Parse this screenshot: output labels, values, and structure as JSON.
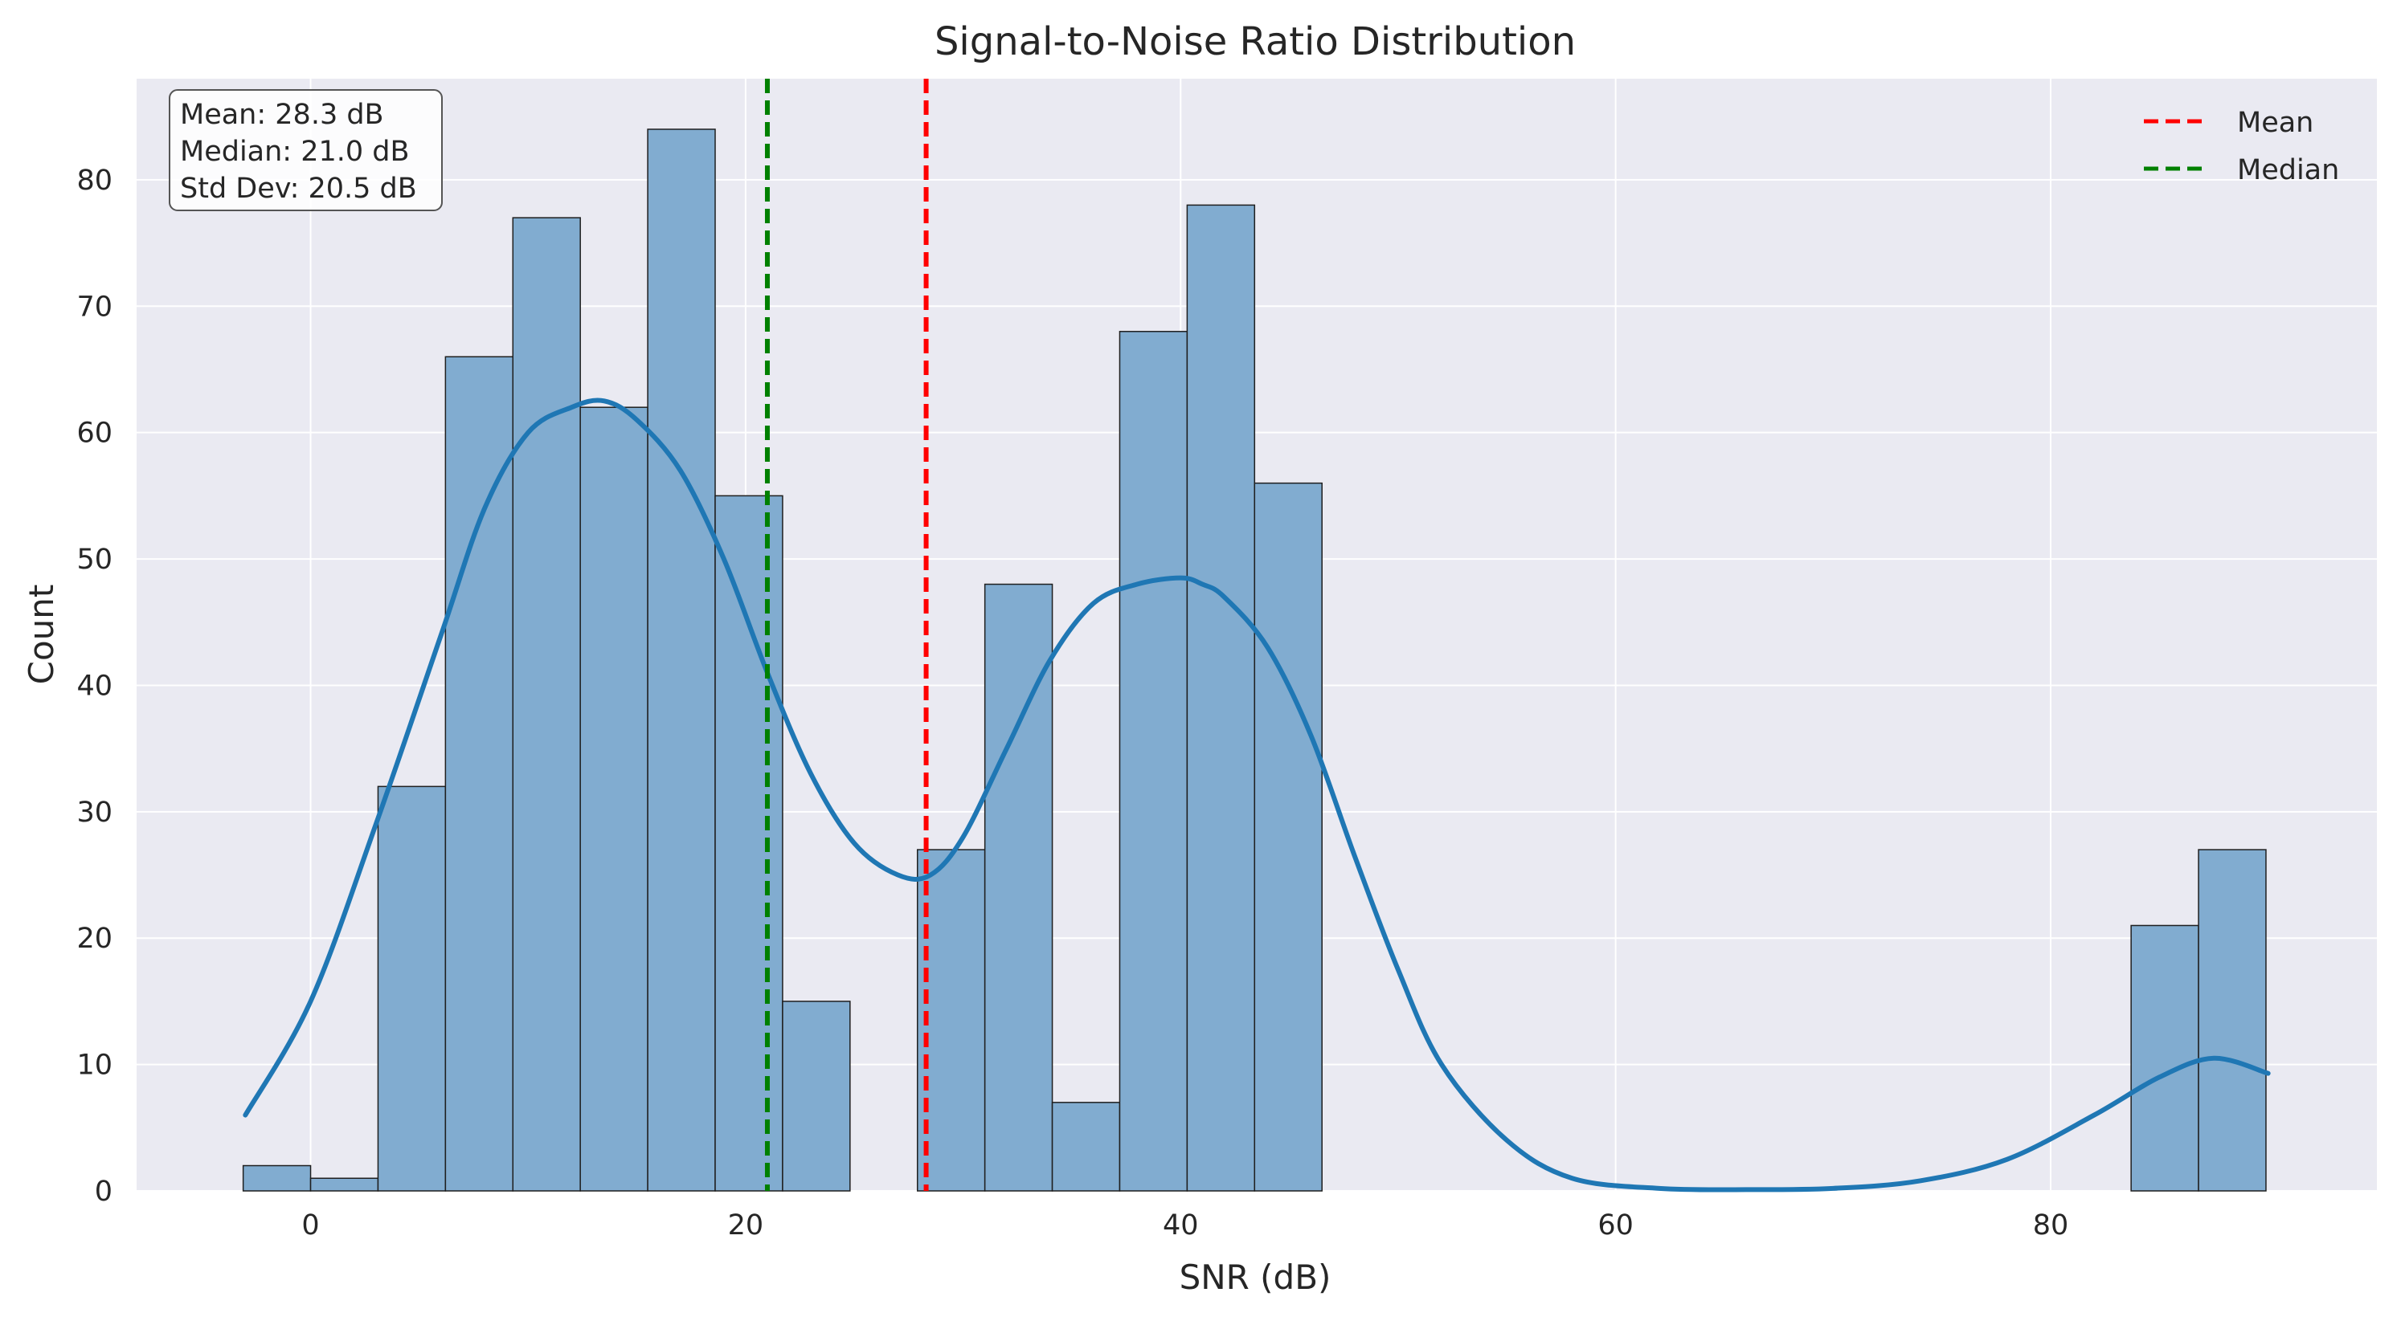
{
  "chart_data": {
    "type": "bar",
    "title": "Signal-to-Noise Ratio Distribution",
    "xlabel": "SNR (dB)",
    "ylabel": "Count",
    "xlim": [
      -8,
      95
    ],
    "ylim": [
      0,
      88
    ],
    "grid": true,
    "legend_position": "top-right",
    "colors": {
      "plot_background": "#eaeaf2",
      "grid": "#ffffff",
      "bar_fill": "#81acd0",
      "bar_edge": "#1f1f1f",
      "kde": "#1f77b4",
      "mean": "#ff0000",
      "median": "#008000"
    },
    "x_ticks": [
      0,
      20,
      40,
      60,
      80
    ],
    "y_ticks": [
      0,
      10,
      20,
      30,
      40,
      50,
      60,
      70,
      80
    ],
    "bin_edges": [
      -3.1,
      0.0,
      3.1,
      6.2,
      9.3,
      12.4,
      15.5,
      18.6,
      21.7,
      24.8,
      27.9,
      31.0,
      34.1,
      37.2,
      40.3,
      43.4,
      46.5,
      49.6,
      52.7,
      55.8,
      58.9,
      62.0,
      65.1,
      68.2,
      71.3,
      74.4,
      77.5,
      80.6,
      83.7,
      86.8,
      89.9
    ],
    "counts": [
      2,
      1,
      32,
      66,
      77,
      62,
      84,
      55,
      15,
      0,
      27,
      48,
      7,
      68,
      78,
      56,
      0,
      0,
      0,
      0,
      0,
      0,
      0,
      0,
      0,
      0,
      0,
      0,
      21,
      27
    ],
    "kde": {
      "x": [
        -3,
        0,
        3,
        6,
        8,
        10,
        12,
        13.5,
        15,
        17,
        19,
        21,
        23,
        25,
        27,
        28.5,
        30,
        32,
        34,
        36,
        38,
        40,
        41,
        42,
        44,
        46,
        48,
        50,
        52,
        55,
        58,
        62,
        66,
        70,
        74,
        78,
        82,
        85,
        87.5,
        90
      ],
      "y": [
        6,
        15,
        29,
        44,
        54,
        60,
        62,
        62.5,
        61,
        57,
        50,
        41,
        33,
        27.5,
        25,
        25,
        28,
        35,
        42,
        46.5,
        48,
        48.5,
        48,
        47,
        43,
        36,
        26.5,
        17.5,
        10,
        4,
        1,
        0.2,
        0.1,
        0.2,
        0.8,
        2.5,
        6,
        9,
        10.5,
        9.3
      ]
    },
    "reference_lines": [
      {
        "name": "Mean",
        "value": 28.3,
        "style": "dashed"
      },
      {
        "name": "Median",
        "value": 21.0,
        "style": "dashed"
      }
    ],
    "stats_box": {
      "lines": [
        "Mean: 28.3 dB",
        "Median: 21.0 dB",
        "Std Dev: 20.5 dB"
      ]
    },
    "legend": [
      {
        "label": "Mean",
        "color": "#ff0000"
      },
      {
        "label": "Median",
        "color": "#008000"
      }
    ]
  }
}
